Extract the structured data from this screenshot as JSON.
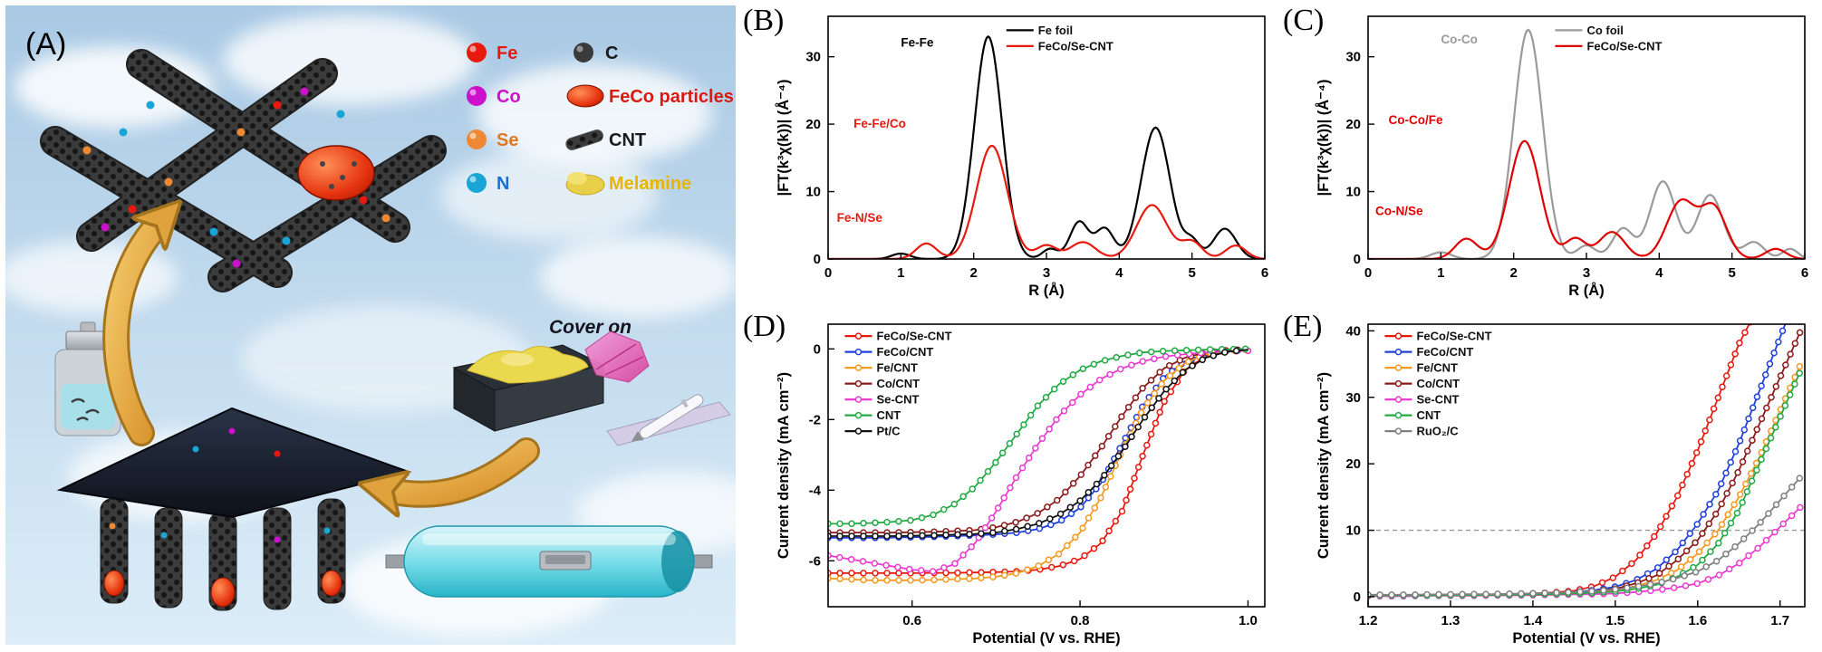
{
  "panel_a": {
    "label": "(A)",
    "cover_on": "Cover on",
    "legend": [
      {
        "label": "Fe",
        "color": "#e8190f",
        "text_color": "#e8190f"
      },
      {
        "label": "Co",
        "color": "#cc10cc",
        "text_color": "#cc10cc"
      },
      {
        "label": "Se",
        "color": "#ee8833",
        "text_color": "#e07820"
      },
      {
        "label": "N",
        "color": "#19a6d6",
        "text_color": "#1a6fd4"
      },
      {
        "label": "C",
        "color": "#3a3a3a",
        "text_color": "#1a1a1a"
      },
      {
        "label": "FeCo particles",
        "color": "#d81a10",
        "text_color": "#d81a10"
      },
      {
        "label": "CNT",
        "color": "#8a8a8a",
        "text_color": "#1a1a1a"
      },
      {
        "label": "Melamine",
        "color": "#e8cf4a",
        "text_color": "#e8b400"
      }
    ]
  },
  "chart_data": [
    {
      "type": "line",
      "panel_label": "(B)",
      "xlabel": "R (Å)",
      "ylabel": "|FT(k³χ(k))| (Å⁻⁴)",
      "xlim": [
        0,
        6
      ],
      "ylim": [
        0,
        36
      ],
      "xticks": [
        0,
        1,
        2,
        3,
        4,
        5,
        6
      ],
      "xtick_labels": [
        "0",
        "1",
        "2",
        "3",
        "4",
        "5",
        "6"
      ],
      "yticks": [
        0,
        10,
        20,
        30
      ],
      "ytick_labels": [
        "0",
        "10",
        "20",
        "30"
      ],
      "legend_pos": [
        0.4,
        0.02
      ],
      "series": [
        {
          "name": "Fe foil",
          "color": "#000000",
          "peaks": [
            [
              1.0,
              0.8,
              0.18
            ],
            [
              2.2,
              33,
              0.27
            ],
            [
              3.05,
              1.5,
              0.15
            ],
            [
              3.45,
              5.5,
              0.18
            ],
            [
              3.8,
              4.5,
              0.18
            ],
            [
              4.5,
              19.5,
              0.28
            ],
            [
              5.0,
              2.5,
              0.15
            ],
            [
              5.45,
              4.5,
              0.22
            ]
          ]
        },
        {
          "name": "FeCo/Se-CNT",
          "color": "#e8190f",
          "peaks": [
            [
              1.35,
              2.3,
              0.2
            ],
            [
              2.25,
              16.8,
              0.3
            ],
            [
              3.0,
              2.0,
              0.2
            ],
            [
              3.5,
              2.5,
              0.25
            ],
            [
              4.45,
              8.0,
              0.3
            ],
            [
              5.0,
              2.5,
              0.2
            ],
            [
              5.6,
              2.0,
              0.2
            ]
          ]
        }
      ],
      "annotations": [
        {
          "text": "Fe-Fe",
          "x": 1.0,
          "y": 31.5,
          "color": "#000000"
        },
        {
          "text": "Fe-Fe/Co",
          "x": 0.35,
          "y": 19.5,
          "color": "#e8190f"
        },
        {
          "text": "Fe-N/Se",
          "x": 0.12,
          "y": 5.5,
          "color": "#e8190f"
        }
      ]
    },
    {
      "type": "line",
      "panel_label": "(C)",
      "xlabel": "R (Å)",
      "ylabel": "|FT(k³χ(k))| (Å⁻⁴)",
      "xlim": [
        0,
        6
      ],
      "ylim": [
        0,
        36
      ],
      "xticks": [
        0,
        1,
        2,
        3,
        4,
        5,
        6
      ],
      "xtick_labels": [
        "0",
        "1",
        "2",
        "3",
        "4",
        "5",
        "6"
      ],
      "yticks": [
        0,
        10,
        20,
        30
      ],
      "ytick_labels": [
        "0",
        "10",
        "20",
        "30"
      ],
      "legend_pos": [
        0.42,
        0.02
      ],
      "series": [
        {
          "name": "Co foil",
          "color": "#9a9a9a",
          "peaks": [
            [
              1.0,
              1.0,
              0.2
            ],
            [
              2.2,
              34,
              0.28
            ],
            [
              3.0,
              2.0,
              0.18
            ],
            [
              3.5,
              4.5,
              0.2
            ],
            [
              4.05,
              11.5,
              0.25
            ],
            [
              4.7,
              9.5,
              0.25
            ],
            [
              5.3,
              2.5,
              0.2
            ],
            [
              5.8,
              1.5,
              0.15
            ]
          ]
        },
        {
          "name": "FeCo/Se-CNT",
          "color": "#e00000",
          "peaks": [
            [
              1.35,
              3.0,
              0.22
            ],
            [
              2.15,
              17.5,
              0.3
            ],
            [
              2.85,
              3.0,
              0.2
            ],
            [
              3.35,
              4.0,
              0.25
            ],
            [
              4.3,
              8.5,
              0.28
            ],
            [
              4.75,
              7.5,
              0.25
            ],
            [
              5.6,
              1.5,
              0.2
            ]
          ]
        }
      ],
      "annotations": [
        {
          "text": "Co-Co",
          "x": 1.0,
          "y": 32,
          "color": "#9a9a9a"
        },
        {
          "text": "Co-Co/Fe",
          "x": 0.28,
          "y": 20,
          "color": "#e00000"
        },
        {
          "text": "Co-N/Se",
          "x": 0.1,
          "y": 6.5,
          "color": "#e00000"
        }
      ]
    },
    {
      "type": "line",
      "panel_label": "(D)",
      "xlabel": "Potential (V vs. RHE)",
      "ylabel": "Current density (mA cm⁻²)",
      "xlim": [
        0.5,
        1.02
      ],
      "ylim": [
        -7.3,
        0.7
      ],
      "xticks": [
        0.6,
        0.8,
        1.0
      ],
      "xtick_labels": [
        "0.6",
        "0.8",
        "1.0"
      ],
      "yticks": [
        0,
        -2,
        -4,
        -6
      ],
      "ytick_labels": [
        "0",
        "-2",
        "-4",
        "-6"
      ],
      "legend_pos": [
        0.03,
        0.01
      ],
      "marker": true,
      "x": [
        0.5,
        0.525,
        0.55,
        0.575,
        0.6,
        0.625,
        0.65,
        0.675,
        0.7,
        0.725,
        0.75,
        0.775,
        0.8,
        0.825,
        0.85,
        0.875,
        0.9,
        0.925,
        0.95,
        0.975,
        1.0
      ],
      "series": [
        {
          "name": "FeCo/Se-CNT",
          "color": "#e8190f",
          "y": [
            -6.35,
            -6.35,
            -6.35,
            -6.35,
            -6.35,
            -6.34,
            -6.34,
            -6.33,
            -6.32,
            -6.3,
            -6.25,
            -6.15,
            -5.95,
            -5.5,
            -4.6,
            -3.0,
            -1.5,
            -0.6,
            -0.2,
            -0.06,
            -0.02
          ]
        },
        {
          "name": "FeCo/CNT",
          "color": "#2040d8",
          "y": [
            -5.35,
            -5.35,
            -5.35,
            -5.34,
            -5.33,
            -5.32,
            -5.3,
            -5.28,
            -5.25,
            -5.2,
            -5.1,
            -4.9,
            -4.5,
            -3.8,
            -2.7,
            -1.6,
            -0.8,
            -0.35,
            -0.15,
            -0.05,
            -0.02
          ]
        },
        {
          "name": "Fe/CNT",
          "color": "#f59a23",
          "y": [
            -6.5,
            -6.52,
            -6.55,
            -6.55,
            -6.55,
            -6.54,
            -6.52,
            -6.5,
            -6.45,
            -6.35,
            -6.15,
            -5.8,
            -5.2,
            -4.2,
            -2.9,
            -1.7,
            -0.9,
            -0.4,
            -0.15,
            -0.05,
            -0.02
          ]
        },
        {
          "name": "Co/CNT",
          "color": "#8b1a1a",
          "y": [
            -5.2,
            -5.2,
            -5.2,
            -5.2,
            -5.19,
            -5.18,
            -5.16,
            -5.13,
            -5.05,
            -4.9,
            -4.65,
            -4.25,
            -3.6,
            -2.8,
            -1.9,
            -1.1,
            -0.55,
            -0.25,
            -0.1,
            -0.04,
            -0.01
          ]
        },
        {
          "name": "Se-CNT",
          "color": "#e93ccf",
          "y": [
            -5.85,
            -5.95,
            -6.05,
            -6.15,
            -6.25,
            -6.3,
            -6.1,
            -5.5,
            -4.6,
            -3.6,
            -2.7,
            -1.9,
            -1.3,
            -0.85,
            -0.55,
            -0.35,
            -0.22,
            -0.15,
            -0.1,
            -0.07,
            -0.05
          ]
        },
        {
          "name": "CNT",
          "color": "#22aa44",
          "y": [
            -4.95,
            -4.95,
            -4.93,
            -4.9,
            -4.85,
            -4.7,
            -4.4,
            -3.9,
            -3.2,
            -2.4,
            -1.6,
            -1.0,
            -0.6,
            -0.35,
            -0.2,
            -0.1,
            -0.06,
            -0.04,
            -0.02,
            -0.01,
            0.0
          ]
        },
        {
          "name": "Pt/C",
          "color": "#111111",
          "y": [
            -5.3,
            -5.3,
            -5.3,
            -5.3,
            -5.29,
            -5.28,
            -5.26,
            -5.24,
            -5.2,
            -5.1,
            -4.95,
            -4.7,
            -4.3,
            -3.7,
            -2.9,
            -2.0,
            -1.2,
            -0.6,
            -0.25,
            -0.08,
            -0.02
          ]
        }
      ],
      "annotations": []
    },
    {
      "type": "line",
      "panel_label": "(E)",
      "xlabel": "Potential (V vs. RHE)",
      "ylabel": "Current density (mA cm⁻²)",
      "xlim": [
        1.2,
        1.73
      ],
      "ylim": [
        -1.5,
        41
      ],
      "xticks": [
        1.2,
        1.3,
        1.4,
        1.5,
        1.6,
        1.7
      ],
      "xtick_labels": [
        "1.2",
        "1.3",
        "1.4",
        "1.5",
        "1.6",
        "1.7"
      ],
      "yticks": [
        0,
        10,
        20,
        30,
        40
      ],
      "ytick_labels": [
        "0",
        "10",
        "20",
        "30",
        "40"
      ],
      "legend_pos": [
        0.03,
        0.01
      ],
      "marker": true,
      "hline": 10,
      "x": [
        1.2,
        1.225,
        1.25,
        1.275,
        1.3,
        1.325,
        1.35,
        1.375,
        1.4,
        1.425,
        1.45,
        1.475,
        1.5,
        1.525,
        1.55,
        1.575,
        1.6,
        1.625,
        1.65,
        1.675,
        1.7,
        1.725
      ],
      "series": [
        {
          "name": "FeCo/Se-CNT",
          "color": "#e8190f",
          "y": [
            0.2,
            0.2,
            0.25,
            0.25,
            0.3,
            0.3,
            0.35,
            0.4,
            0.5,
            0.65,
            0.9,
            1.6,
            3.0,
            5.5,
            9.5,
            15,
            22,
            30,
            38,
            44,
            50,
            56
          ]
        },
        {
          "name": "FeCo/CNT",
          "color": "#2040d8",
          "y": [
            0.2,
            0.2,
            0.2,
            0.25,
            0.25,
            0.3,
            0.3,
            0.35,
            0.4,
            0.5,
            0.7,
            1.0,
            1.5,
            2.5,
            4.2,
            7.0,
            11,
            16,
            23,
            31,
            39,
            47
          ]
        },
        {
          "name": "Fe/CNT",
          "color": "#f59a23",
          "y": [
            0.15,
            0.15,
            0.2,
            0.2,
            0.2,
            0.25,
            0.25,
            0.3,
            0.35,
            0.4,
            0.5,
            0.7,
            1.0,
            1.6,
            2.5,
            4.0,
            6.5,
            10,
            15,
            21,
            28,
            35
          ]
        },
        {
          "name": "Co/CNT",
          "color": "#8b1a1a",
          "y": [
            0.2,
            0.2,
            0.2,
            0.25,
            0.25,
            0.3,
            0.3,
            0.35,
            0.4,
            0.5,
            0.6,
            0.85,
            1.2,
            2.0,
            3.2,
            5.5,
            8.5,
            13,
            19,
            26,
            33,
            40
          ]
        },
        {
          "name": "Se-CNT",
          "color": "#e93ccf",
          "y": [
            0.1,
            0.1,
            0.1,
            0.15,
            0.15,
            0.15,
            0.2,
            0.2,
            0.25,
            0.3,
            0.35,
            0.4,
            0.5,
            0.7,
            1.0,
            1.4,
            2.0,
            3.2,
            5.0,
            7.5,
            10.5,
            13.5
          ]
        },
        {
          "name": "CNT",
          "color": "#22aa44",
          "y": [
            0.2,
            0.2,
            0.2,
            0.2,
            0.25,
            0.25,
            0.3,
            0.3,
            0.35,
            0.4,
            0.5,
            0.6,
            0.8,
            1.2,
            1.8,
            3.0,
            4.8,
            8.0,
            13,
            20,
            27,
            34
          ]
        },
        {
          "name": "RuO₂/C",
          "color": "#808080",
          "y": [
            0.3,
            0.3,
            0.3,
            0.35,
            0.35,
            0.4,
            0.4,
            0.45,
            0.5,
            0.6,
            0.7,
            0.85,
            1.1,
            1.5,
            2.0,
            2.8,
            3.8,
            5.5,
            8.0,
            11,
            14.5,
            18
          ]
        }
      ],
      "annotations": []
    }
  ]
}
